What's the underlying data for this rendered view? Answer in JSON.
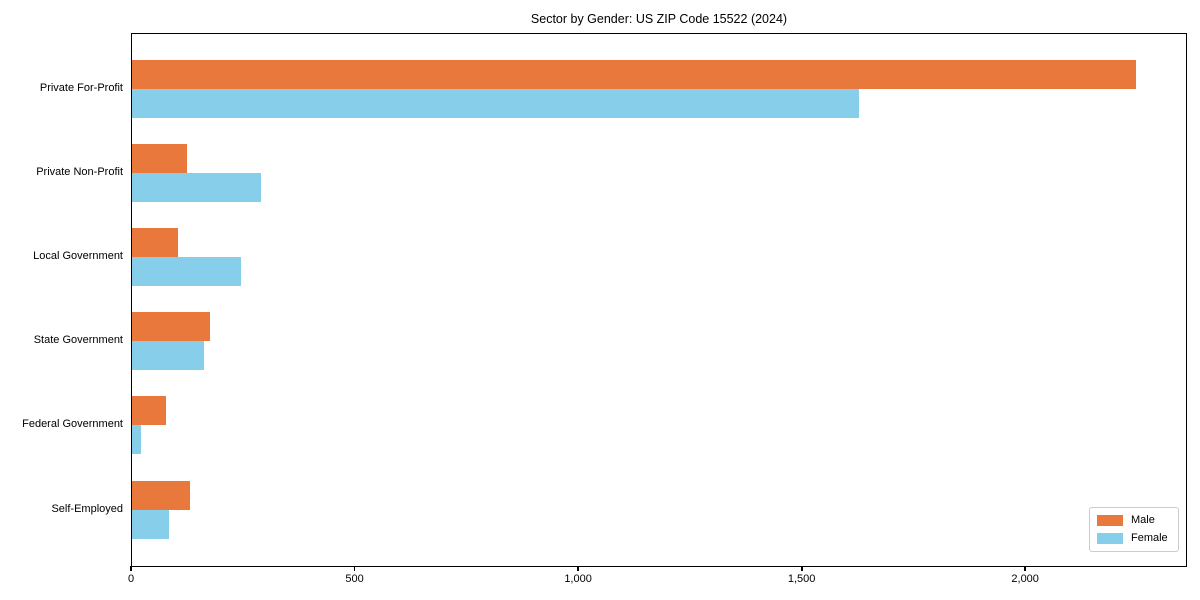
{
  "chart_data": {
    "type": "bar",
    "orientation": "horizontal",
    "title": "Sector by Gender: US ZIP Code 15522 (2024)",
    "categories": [
      "Private For-Profit",
      "Private Non-Profit",
      "Local Government",
      "State Government",
      "Federal Government",
      "Self-Employed"
    ],
    "series": [
      {
        "name": "Male",
        "color": "#e8783c",
        "values": [
          2246,
          123,
          102,
          174,
          75,
          130
        ]
      },
      {
        "name": "Female",
        "color": "#87ceeb",
        "values": [
          1627,
          288,
          244,
          160,
          20,
          82
        ]
      }
    ],
    "xlabel": "",
    "ylabel": "",
    "xlim": [
      0,
      2362
    ],
    "xticks": [
      0,
      500,
      1000,
      1500,
      2000
    ],
    "xtick_labels": [
      "0",
      "500",
      "1,000",
      "1,500",
      "2,000"
    ],
    "legend_position": "lower right",
    "grid": false,
    "background_color": "#ffffff",
    "axis_color": "#000000"
  }
}
